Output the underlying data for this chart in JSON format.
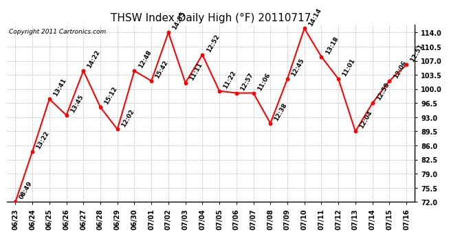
{
  "title": "THSW Index Daily High (°F) 20110717",
  "copyright": "Copyright 2011 Cartronics.com",
  "x_labels": [
    "06/23",
    "06/24",
    "06/25",
    "06/26",
    "06/27",
    "06/28",
    "06/29",
    "06/30",
    "07/01",
    "07/02",
    "07/03",
    "07/04",
    "07/05",
    "07/06",
    "07/07",
    "07/08",
    "07/09",
    "07/10",
    "07/11",
    "07/12",
    "07/13",
    "07/14",
    "07/15",
    "07/16"
  ],
  "y_values": [
    72.0,
    84.5,
    97.5,
    93.5,
    104.5,
    95.5,
    90.0,
    104.5,
    102.0,
    114.0,
    101.5,
    108.5,
    99.5,
    99.0,
    99.0,
    91.5,
    102.5,
    115.0,
    108.0,
    102.5,
    89.5,
    96.5,
    102.0,
    106.0
  ],
  "point_labels": [
    "08:49",
    "13:22",
    "13:41",
    "13:45",
    "14:22",
    "15:12",
    "12:02",
    "12:48",
    "15:42",
    "14:55",
    "11:11",
    "12:52",
    "11:22",
    "12:57",
    "11:06",
    "12:38",
    "12:45",
    "14:14",
    "13:18",
    "11:01",
    "12:04",
    "12:58",
    "12:06",
    "12:51"
  ],
  "line_color": "#ff0000",
  "point_color": "#ff0000",
  "background_color": "#ffffff",
  "grid_color": "#bbbbbb",
  "title_fontsize": 11,
  "label_fontsize": 6.5,
  "tick_fontsize": 7,
  "copyright_fontsize": 6.5,
  "ylim": [
    72.0,
    116.0
  ],
  "yticks": [
    72.0,
    75.5,
    79.0,
    82.5,
    86.0,
    89.5,
    93.0,
    96.5,
    100.0,
    103.5,
    107.0,
    110.5,
    114.0
  ]
}
